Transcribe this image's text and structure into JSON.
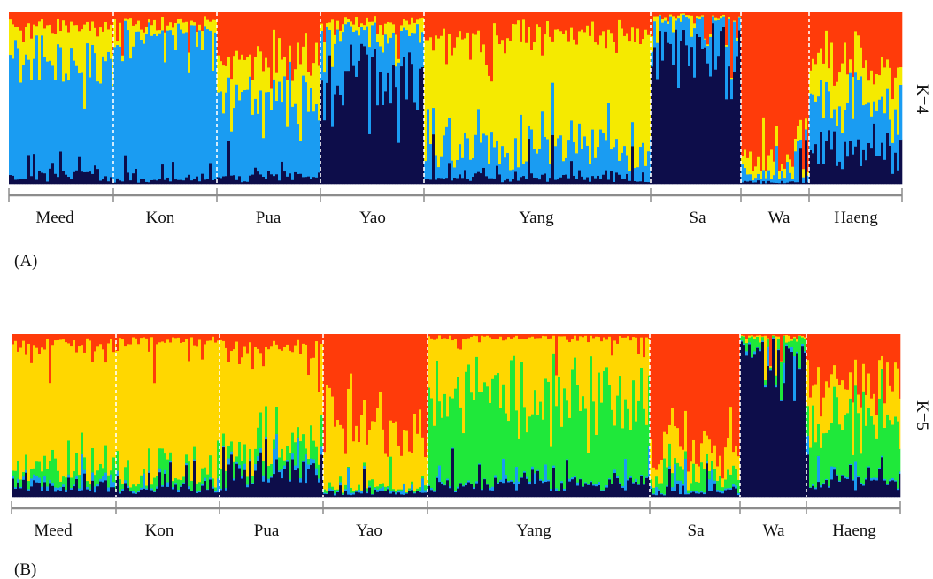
{
  "chart_data": [
    {
      "type": "bar",
      "stacked": true,
      "panel_label": "(A)",
      "k_label": "K=4",
      "populations": [
        "Meed",
        "Kon",
        "Pua",
        "Yao",
        "Yang",
        "Sa",
        "Wa",
        "Haeng"
      ],
      "cluster_colors": [
        "#0d0d4a",
        "#1a9cf2",
        "#f5ea00",
        "#ff3b0a"
      ],
      "ylim": [
        0,
        1
      ],
      "population_mean_ancestry": {
        "Meed": [
          0.05,
          0.68,
          0.19,
          0.08
        ],
        "Kon": [
          0.03,
          0.84,
          0.06,
          0.07
        ],
        "Pua": [
          0.04,
          0.47,
          0.22,
          0.27
        ],
        "Yao": [
          0.63,
          0.27,
          0.05,
          0.05
        ],
        "Yang": [
          0.04,
          0.18,
          0.64,
          0.14
        ],
        "Sa": [
          0.86,
          0.11,
          0.01,
          0.02
        ],
        "Wa": [
          0.01,
          0.04,
          0.07,
          0.88
        ],
        "Haeng": [
          0.18,
          0.29,
          0.23,
          0.3
        ]
      }
    },
    {
      "type": "bar",
      "stacked": true,
      "panel_label": "(B)",
      "k_label": "K=5",
      "populations": [
        "Meed",
        "Kon",
        "Pua",
        "Yao",
        "Yang",
        "Sa",
        "Wa",
        "Haeng"
      ],
      "cluster_colors": [
        "#0d0d4a",
        "#1a9cf2",
        "#1fe83a",
        "#ffd700",
        "#ff3b0a"
      ],
      "ylim": [
        0,
        1
      ],
      "population_mean_ancestry": {
        "Meed": [
          0.06,
          0.02,
          0.09,
          0.76,
          0.07
        ],
        "Kon": [
          0.05,
          0.01,
          0.06,
          0.84,
          0.04
        ],
        "Pua": [
          0.14,
          0.02,
          0.1,
          0.66,
          0.08
        ],
        "Yao": [
          0.03,
          0.01,
          0.02,
          0.38,
          0.56
        ],
        "Yang": [
          0.08,
          0.01,
          0.55,
          0.34,
          0.02
        ],
        "Sa": [
          0.03,
          0.01,
          0.08,
          0.13,
          0.75
        ],
        "Wa": [
          0.93,
          0.01,
          0.04,
          0.01,
          0.01
        ],
        "Haeng": [
          0.1,
          0.01,
          0.29,
          0.25,
          0.35
        ]
      }
    }
  ]
}
